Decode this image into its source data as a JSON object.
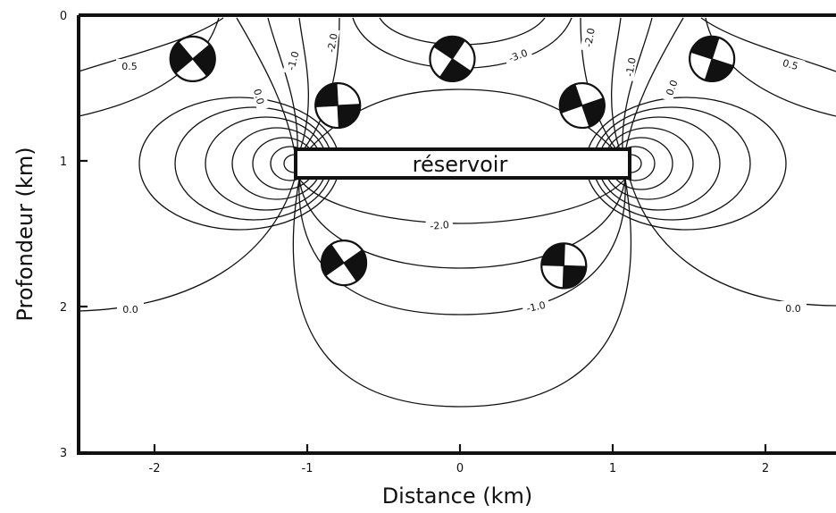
{
  "figure": {
    "x_axis_label": "Distance (km)",
    "y_axis_label": "Profondeur (km)",
    "x_ticks": [
      "-2",
      "-1",
      "0",
      "1",
      "2"
    ],
    "y_ticks": [
      "0",
      "1",
      "2",
      "3"
    ],
    "reservoir_label": "réservoir",
    "contour_labels": [
      "0.5",
      "-1.0",
      "-2.0",
      "-3.0",
      "-2.0",
      "-1.0",
      "0.5",
      "0.0",
      "0.0",
      "-2.0",
      "-1.0",
      "0.0",
      "0.0"
    ]
  },
  "chart_data": {
    "type": "contour",
    "x_range_km": [
      -2.5,
      2.5
    ],
    "depth_range_km": [
      0,
      3
    ],
    "reservoir": {
      "x_km": [
        -1.05,
        1.08
      ],
      "depth_km": [
        0.9,
        1.1
      ]
    },
    "contour_levels": [
      0.5,
      0.0,
      -1.0,
      -2.0,
      -3.0
    ],
    "focal_mechanisms": [
      {
        "x_km": -1.75,
        "depth_km": 0.3
      },
      {
        "x_km": -0.8,
        "depth_km": 0.62
      },
      {
        "x_km": -0.05,
        "depth_km": 0.3
      },
      {
        "x_km": 0.8,
        "depth_km": 0.62
      },
      {
        "x_km": 1.65,
        "depth_km": 0.3
      },
      {
        "x_km": -0.76,
        "depth_km": 1.7
      },
      {
        "x_km": 0.68,
        "depth_km": 1.72
      }
    ]
  }
}
